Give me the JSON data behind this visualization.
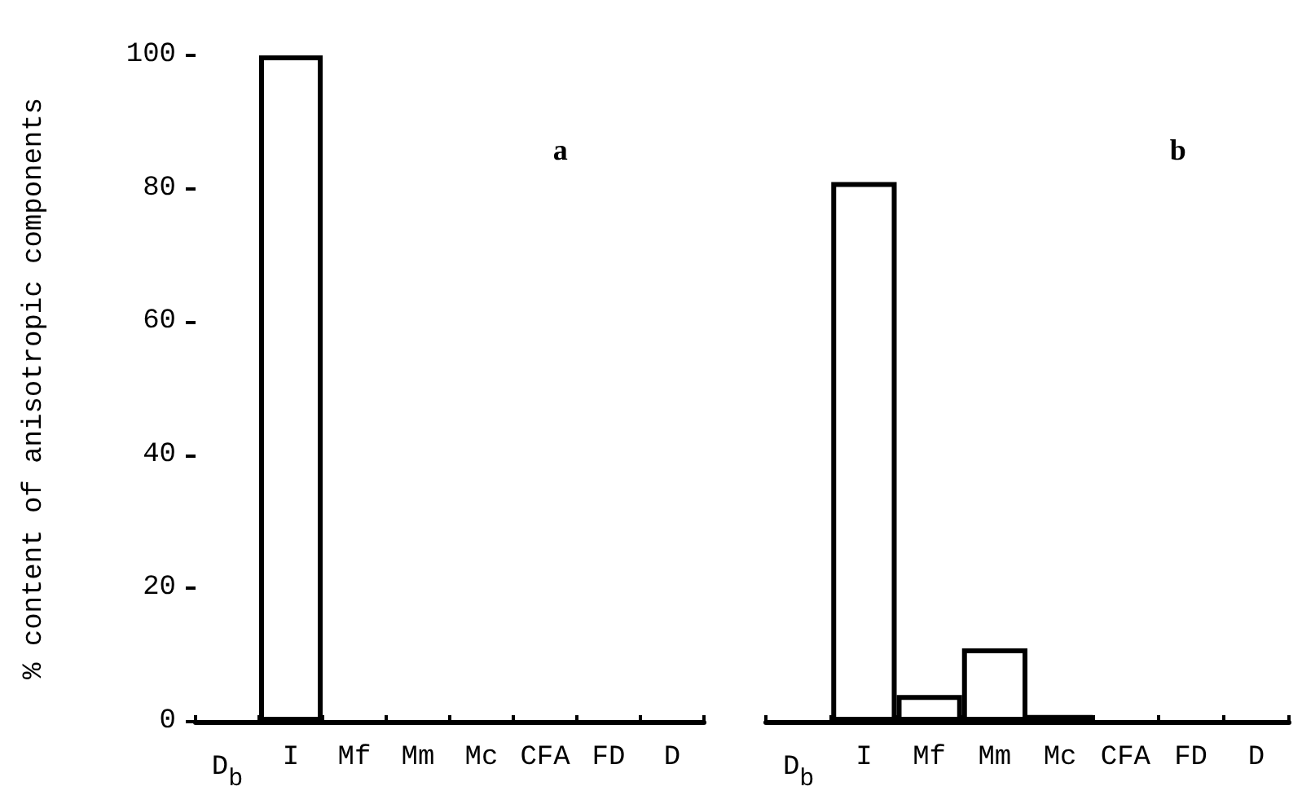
{
  "chart_data": [
    {
      "type": "bar",
      "title": "a",
      "ylabel": "% content of anisotropic components",
      "categories": [
        "D$_{b}$",
        "I",
        "Mf",
        "Mm",
        "Mc",
        "CFA",
        "FD",
        "D"
      ],
      "values": [
        0,
        100,
        0,
        0,
        0,
        0,
        0,
        0
      ],
      "color": "#ffffff",
      "ylim": [
        0,
        100
      ],
      "yticks": [
        0,
        20,
        40,
        60,
        80,
        100
      ],
      "grid": false
    },
    {
      "type": "bar",
      "title": "b",
      "categories": [
        "D$_{b}$",
        "I",
        "Mf",
        "Mm",
        "Mc",
        "CFA",
        "FD",
        "D"
      ],
      "values": [
        0,
        81,
        4,
        11,
        1,
        0,
        0,
        0
      ],
      "color": "#ffffff",
      "ylim": [
        0,
        100
      ],
      "yticks": [
        0,
        20,
        40,
        60,
        80,
        100
      ],
      "grid": false,
      "tick_labels": "x"
    }
  ]
}
